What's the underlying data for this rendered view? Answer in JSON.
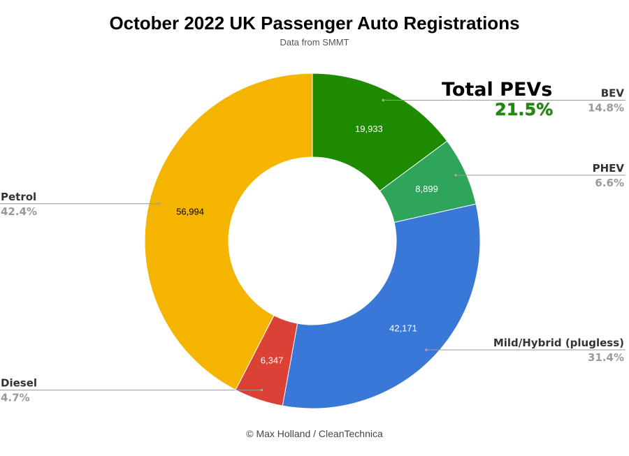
{
  "chart_data": {
    "type": "pie",
    "donut": true,
    "title": "October 2022 UK Passenger Auto Registrations",
    "subtitle": "Data from SMMT",
    "credit": "© Max Holland / CleanTechnica",
    "annotation": {
      "title": "Total PEVs",
      "value": "21.5%"
    },
    "slices": [
      {
        "name": "BEV",
        "value": 19933,
        "value_label": "19,933",
        "percent": "14.8%",
        "color": "#1e8a00",
        "label_color": "#ffffff",
        "side": "right"
      },
      {
        "name": "PHEV",
        "value": 8899,
        "value_label": "8,899",
        "percent": "6.6%",
        "color": "#2ea55a",
        "label_color": "#ffffff",
        "side": "right"
      },
      {
        "name": "Mild/Hybrid (plugless)",
        "value": 42171,
        "value_label": "42,171",
        "percent": "31.4%",
        "color": "#3a78d8",
        "label_color": "#ffffff",
        "side": "right"
      },
      {
        "name": "Diesel",
        "value": 6347,
        "value_label": "6,347",
        "percent": "4.7%",
        "color": "#dc4136",
        "label_color": "#ffffff",
        "side": "left"
      },
      {
        "name": "Petrol",
        "value": 56994,
        "value_label": "56,994",
        "percent": "42.4%",
        "color": "#f4b400",
        "label_color": "#000000",
        "side": "left"
      }
    ]
  }
}
